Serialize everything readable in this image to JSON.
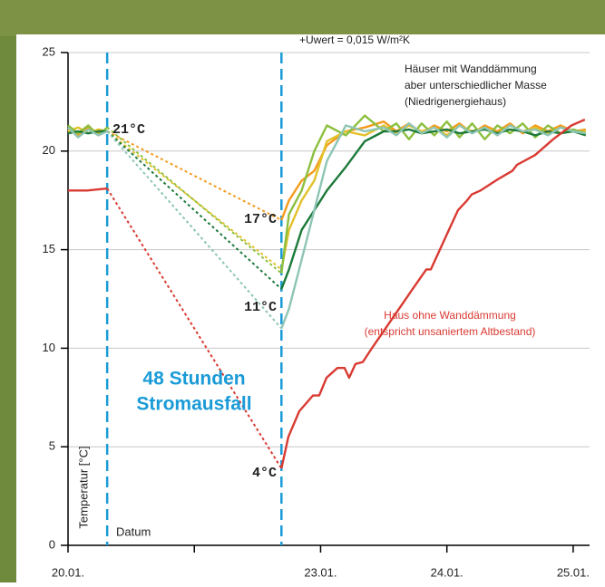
{
  "chart_data": {
    "type": "line",
    "ylim": [
      0,
      25
    ],
    "yticks": [
      0,
      5,
      10,
      15,
      20,
      25
    ],
    "xlim": [
      0,
      4.13
    ],
    "xticks": [
      {
        "value": 0,
        "label": "20.01."
      },
      {
        "value": 1,
        "label": null
      },
      {
        "value": 2,
        "label": "23.01."
      },
      {
        "value": 3,
        "label": "24.01."
      },
      {
        "value": 4,
        "label": "25.01."
      }
    ],
    "ylabel": "Temperatur [°C]",
    "xlabel": "Datum",
    "grid": true,
    "vlines": [
      0.31,
      1.69
    ],
    "vline_color": "#1a9bd7",
    "series": [
      {
        "color": "#f39c1f",
        "x": [
          0,
          0.08,
          0.16,
          0.24,
          0.31,
          1.69,
          1.75,
          1.85,
          1.95,
          2.05,
          2.2,
          2.35,
          2.5,
          2.6,
          2.7,
          2.8,
          2.9,
          3.0,
          3.1,
          3.2,
          3.3,
          3.4,
          3.5,
          3.6,
          3.7,
          3.8,
          3.9,
          4.0,
          4.1
        ],
        "values": [
          21.1,
          20.8,
          21.2,
          20.9,
          21,
          16.5,
          17.5,
          18.5,
          19,
          20.3,
          21,
          21.2,
          21.5,
          21.0,
          21.4,
          20.9,
          21.3,
          21.0,
          21.4,
          20.9,
          21.3,
          21.0,
          21.4,
          20.9,
          21.3,
          21.0,
          21.3,
          21.0,
          21.1
        ]
      },
      {
        "color": "#e3c12a",
        "x": [
          0,
          0.08,
          0.16,
          0.24,
          0.31,
          1.69,
          1.75,
          1.85,
          1.95,
          2.05,
          2.2,
          2.35,
          2.5,
          2.6,
          2.7,
          2.8,
          2.9,
          3.0,
          3.1,
          3.2,
          3.3,
          3.4,
          3.5,
          3.6,
          3.7,
          3.8,
          3.9,
          4.0,
          4.1
        ],
        "values": [
          21,
          21.2,
          20.9,
          21.1,
          21,
          14,
          16,
          17.5,
          18.5,
          20.5,
          21,
          20.8,
          21.3,
          20.9,
          21.3,
          21.0,
          21.2,
          20.8,
          21.3,
          21.0,
          21.2,
          20.9,
          21.3,
          21.0,
          21.2,
          20.9,
          21.2,
          21.0,
          21.0
        ]
      },
      {
        "color": "#8cbf3f",
        "x": [
          0,
          0.08,
          0.16,
          0.24,
          0.31,
          1.69,
          1.75,
          1.85,
          1.95,
          2.05,
          2.2,
          2.35,
          2.5,
          2.6,
          2.7,
          2.8,
          2.9,
          3.0,
          3.1,
          3.2,
          3.3,
          3.4,
          3.5,
          3.6,
          3.7,
          3.8,
          3.9,
          4.0,
          4.1
        ],
        "values": [
          21.3,
          20.9,
          21.3,
          20.8,
          21.2,
          13.8,
          16.8,
          18,
          20,
          21.3,
          20.8,
          21.8,
          21,
          21.4,
          20.6,
          21.4,
          20.8,
          21.5,
          20.7,
          21.4,
          20.6,
          21.3,
          20.9,
          21.4,
          20.7,
          21.3,
          20.9,
          21.1,
          20.9
        ]
      },
      {
        "color": "#1d7a3a",
        "x": [
          0,
          0.08,
          0.16,
          0.24,
          0.31,
          1.69,
          1.75,
          1.85,
          1.95,
          2.05,
          2.2,
          2.35,
          2.5,
          2.6,
          2.7,
          2.8,
          2.9,
          3.0,
          3.1,
          3.2,
          3.3,
          3.4,
          3.5,
          3.6,
          3.7,
          3.8,
          3.9,
          4.0,
          4.1
        ],
        "values": [
          20.9,
          21,
          20.9,
          21,
          21,
          13,
          14,
          16,
          17,
          18,
          19.2,
          20.5,
          21,
          21,
          21.1,
          20.9,
          21,
          21.1,
          20.9,
          21,
          21.1,
          20.9,
          21.1,
          21,
          20.8,
          21,
          20.9,
          21,
          20.8
        ]
      },
      {
        "color": "#8ec5b5",
        "x": [
          0,
          0.08,
          0.16,
          0.24,
          0.31,
          1.69,
          1.75,
          1.85,
          1.95,
          2.05,
          2.2,
          2.35,
          2.5,
          2.6,
          2.7,
          2.8,
          2.9,
          3.0,
          3.1,
          3.2,
          3.3,
          3.4,
          3.5,
          3.6,
          3.7,
          3.8,
          3.9,
          4.0,
          4.1
        ],
        "values": [
          21.2,
          20.7,
          21.1,
          20.8,
          21,
          11,
          12,
          14.5,
          17,
          19.5,
          21.3,
          21,
          21.2,
          20.8,
          21.4,
          20.9,
          21.2,
          20.7,
          21.3,
          20.9,
          21.2,
          20.8,
          21.3,
          21,
          21.1,
          20.8,
          21.2,
          21.0,
          20.9
        ]
      },
      {
        "color": "#d93a32",
        "x": [
          0,
          0.15,
          0.31,
          1.69,
          1.745,
          1.831,
          1.939,
          1.989,
          2.047,
          2.133,
          2.19,
          2.226,
          2.276,
          2.334,
          2.406,
          2.514,
          2.621,
          2.729,
          2.837,
          2.873,
          2.98,
          3.088,
          3.16,
          3.196,
          3.267,
          3.411,
          3.519,
          3.555,
          3.698,
          3.842,
          3.986,
          4.093
        ],
        "values": [
          18,
          18,
          18.1,
          3.9,
          5.5,
          6.8,
          7.6,
          7.6,
          8.5,
          9,
          9,
          8.5,
          9.2,
          9.3,
          10,
          11,
          12,
          13,
          14,
          14,
          15.5,
          17,
          17.5,
          17.8,
          18,
          18.6,
          19,
          19.3,
          19.8,
          20.6,
          21.3,
          21.6
        ]
      }
    ],
    "annotations": {
      "uwert": "+Uwert = 0,015 W/m²K",
      "insulated_1": "Häuser mit Wanddämmung",
      "insulated_2": "aber unterschiedlicher Masse",
      "insulated_3": "(Niedrigenergiehaus)",
      "uninsulated_1": "Haus ohne Wanddämmung",
      "uninsulated_2": "(entspricht unsaniertem Altbestand)",
      "outage_1": "48 Stunden",
      "outage_2": "Stromausfall",
      "t21": "21°C",
      "t17": "17°C",
      "t11": "11°C",
      "t4": "4°C"
    }
  }
}
